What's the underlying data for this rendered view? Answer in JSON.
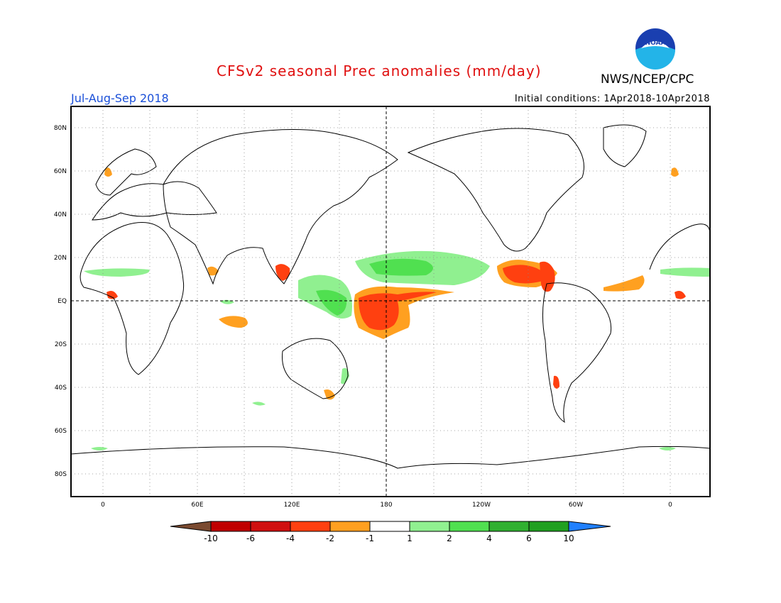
{
  "header": {
    "title": "CFSv2 seasonal Prec anomalies (mm/day)",
    "org": "NWS/NCEP/CPC",
    "season": "Jul-Aug-Sep 2018",
    "initial_conditions": "Initial conditions: 1Apr2018-10Apr2018",
    "logo_text": "NOAA"
  },
  "map": {
    "projection": "equirectangular",
    "lat_labels": [
      "80N",
      "60N",
      "40N",
      "20N",
      "EQ",
      "20S",
      "40S",
      "60S",
      "80S"
    ],
    "lon_labels": [
      "0",
      "60E",
      "120E",
      "180",
      "120W",
      "60W",
      "0"
    ],
    "grid": true
  },
  "colorbar": {
    "tick_labels": [
      "-10",
      "-6",
      "-4",
      "-2",
      "-1",
      "1",
      "2",
      "4",
      "6",
      "10"
    ],
    "colors": [
      "#7a4a30",
      "#c00000",
      "#d01010",
      "#ff4010",
      "#ffa020",
      "#ffffff",
      "#90f090",
      "#50e050",
      "#30b030",
      "#20a020",
      "#2080ff"
    ]
  }
}
